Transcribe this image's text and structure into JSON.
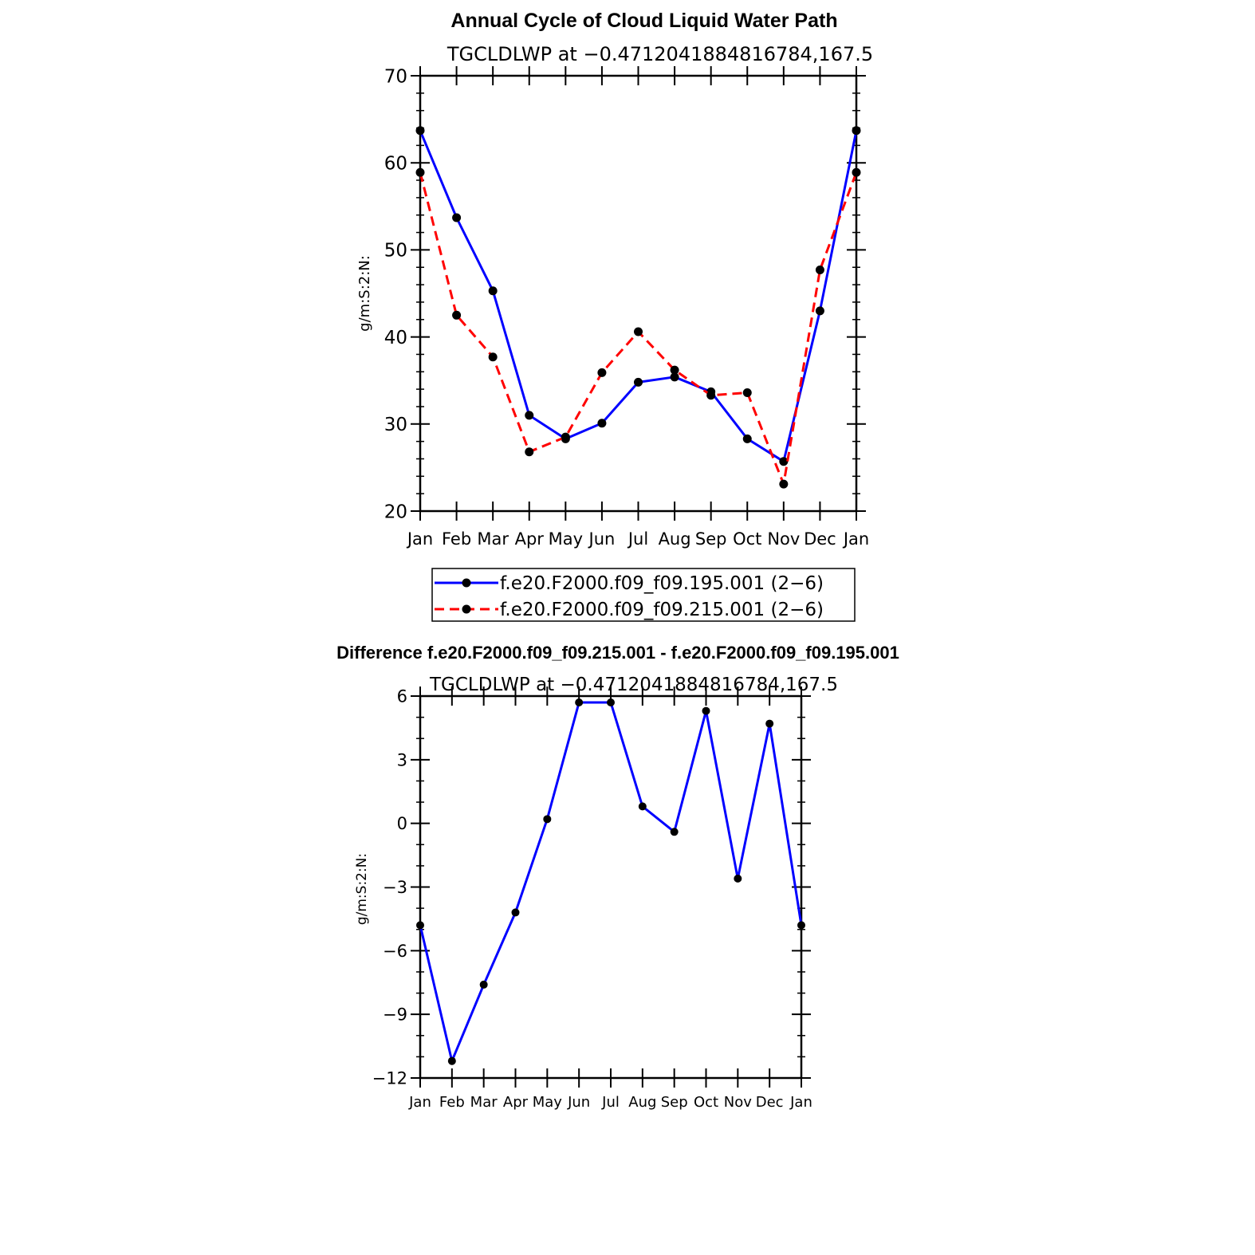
{
  "chart_data": [
    {
      "type": "line",
      "title": "Annual Cycle of Cloud Liquid Water Path",
      "subtitle": "TGCLDLWP at −0.4712041884816784,167.5",
      "xlabel": "",
      "ylabel": "g/m:S:2:N:",
      "categories": [
        "Jan",
        "Feb",
        "Mar",
        "Apr",
        "May",
        "Jun",
        "Jul",
        "Aug",
        "Sep",
        "Oct",
        "Nov",
        "Dec",
        "Jan"
      ],
      "ylim": [
        20,
        70
      ],
      "yticks": [
        "20",
        "30",
        "40",
        "50",
        "60",
        "70"
      ],
      "grid": false,
      "legend": "below",
      "series": [
        {
          "name": "f.e20.F2000.f09_f09.195.001 (2−6)",
          "color": "#0000ff",
          "dash": "solid",
          "values": [
            63.7,
            53.7,
            45.3,
            31.0,
            28.3,
            30.1,
            34.8,
            35.4,
            33.7,
            28.3,
            25.7,
            43.0,
            63.7
          ]
        },
        {
          "name": "f.e20.F2000.f09_f09.215.001 (2−6)",
          "color": "#ff0000",
          "dash": "dashed",
          "values": [
            58.9,
            42.5,
            37.7,
            26.8,
            28.5,
            35.9,
            40.6,
            36.2,
            33.3,
            33.6,
            23.1,
            47.7,
            58.9
          ]
        }
      ]
    },
    {
      "type": "line",
      "title": "Difference f.e20.F2000.f09_f09.215.001 - f.e20.F2000.f09_f09.195.001",
      "subtitle": "TGCLDLWP at −0.4712041884816784,167.5",
      "xlabel": "",
      "ylabel": "g/m:S:2:N:",
      "categories": [
        "Jan",
        "Feb",
        "Mar",
        "Apr",
        "May",
        "Jun",
        "Jul",
        "Aug",
        "Sep",
        "Oct",
        "Nov",
        "Dec",
        "Jan"
      ],
      "ylim": [
        -12,
        6
      ],
      "yticks": [
        "−12",
        "−9",
        "−6",
        "−3",
        "0",
        "3",
        "6"
      ],
      "grid": false,
      "series": [
        {
          "color": "#0000ff",
          "dash": "solid",
          "values": [
            -4.8,
            -11.2,
            -7.6,
            -4.2,
            0.2,
            5.7,
            5.7,
            0.8,
            -0.4,
            5.3,
            -2.6,
            4.7,
            -4.8
          ]
        }
      ]
    }
  ]
}
